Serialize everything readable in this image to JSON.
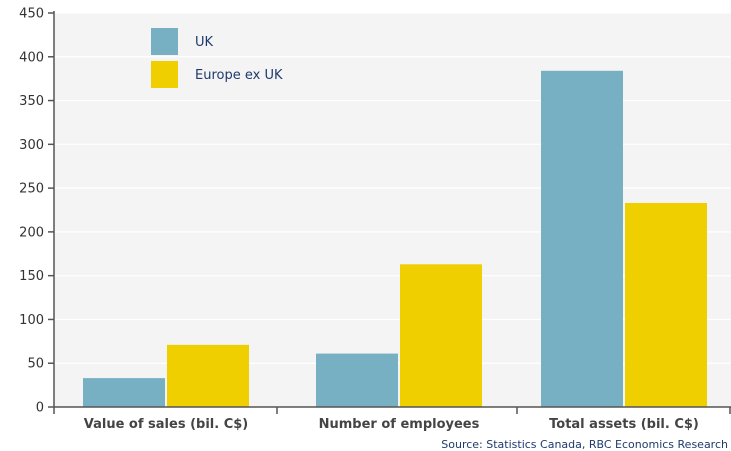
{
  "chart_data": {
    "type": "bar",
    "categories": [
      "Value of sales (bil. C$)",
      "Number of employees",
      "Total assets (bil. C$)"
    ],
    "series": [
      {
        "name": "UK",
        "values": [
          33,
          61,
          384
        ],
        "color": "#76b0c2"
      },
      {
        "name": "Europe ex UK",
        "values": [
          71,
          163,
          233
        ],
        "color": "#f0cf00"
      }
    ],
    "ylim": [
      0,
      450
    ],
    "yticks": [
      "0",
      "50",
      "100",
      "150",
      "200",
      "250",
      "300",
      "350",
      "400",
      "450"
    ],
    "grid": "horizontal",
    "legend_position": "top-left",
    "source": "Source: Statistics Canada, RBC Economics Research",
    "plot_background": "#f4f4f4",
    "axis_color": "#555555"
  }
}
